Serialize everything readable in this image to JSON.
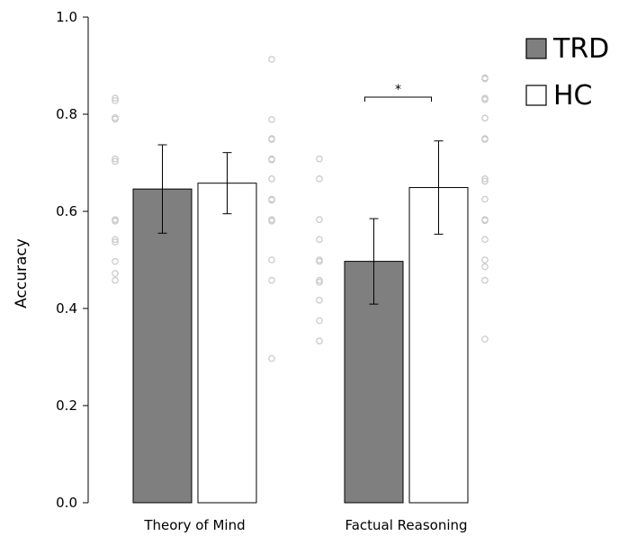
{
  "chart_data": {
    "type": "bar",
    "title": "",
    "xlabel": "",
    "ylabel": "Accuracy",
    "ylim": [
      0,
      1.0
    ],
    "yticks": [
      "0.0",
      "0.2",
      "0.4",
      "0.6",
      "0.8",
      "1.0"
    ],
    "categories": [
      "Theory of Mind",
      "Factual Reasoning"
    ],
    "series": [
      {
        "name": "TRD",
        "color": "#7f7f7f",
        "values": [
          0.646,
          0.497
        ],
        "error": [
          0.091,
          0.088
        ],
        "points": [
          [
            0.833,
            0.828,
            0.793,
            0.79,
            0.708,
            0.703,
            0.583,
            0.58,
            0.542,
            0.537,
            0.497,
            0.472,
            0.458
          ],
          [
            0.708,
            0.667,
            0.583,
            0.542,
            0.5,
            0.497,
            0.458,
            0.454,
            0.417,
            0.375,
            0.333
          ]
        ]
      },
      {
        "name": "HC",
        "color": "#ffffff",
        "values": [
          0.658,
          0.649
        ],
        "error": [
          0.063,
          0.096
        ],
        "points": [
          [
            0.913,
            0.789,
            0.75,
            0.748,
            0.708,
            0.706,
            0.667,
            0.625,
            0.623,
            0.583,
            0.58,
            0.5,
            0.458,
            0.297
          ],
          [
            0.875,
            0.873,
            0.833,
            0.83,
            0.792,
            0.75,
            0.748,
            0.667,
            0.662,
            0.625,
            0.583,
            0.581,
            0.542,
            0.5,
            0.486,
            0.458,
            0.337
          ]
        ]
      }
    ],
    "significance": [
      {
        "category": "Factual Reasoning",
        "label": "*"
      }
    ],
    "legend_position": "top-right",
    "grid": false
  }
}
